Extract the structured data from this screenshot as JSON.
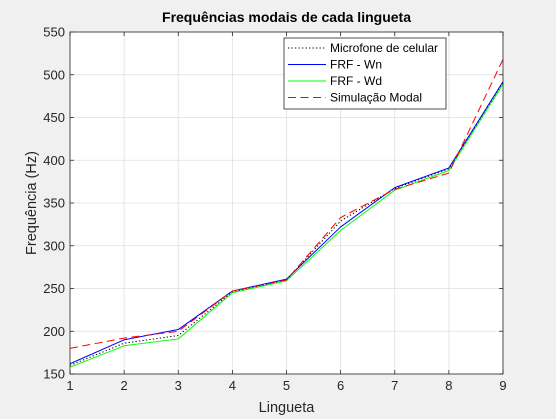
{
  "chart_data": {
    "type": "line",
    "title": "Frequências modais de cada lingueta",
    "xlabel": "Lingueta",
    "ylabel": "Frequência (Hz)",
    "xlim": [
      1,
      9
    ],
    "ylim": [
      150,
      550
    ],
    "x": [
      1,
      2,
      3,
      4,
      5,
      6,
      7,
      8,
      9
    ],
    "x_ticks": [
      1,
      2,
      3,
      4,
      5,
      6,
      7,
      8,
      9
    ],
    "y_ticks": [
      150,
      200,
      250,
      300,
      350,
      400,
      450,
      500,
      550
    ],
    "grid": true,
    "legend_position": "top-right",
    "series": [
      {
        "name": "Microfone de celular",
        "color": "#000000",
        "dash": "dotted",
        "values": [
          160,
          186,
          195,
          246,
          260,
          329,
          367,
          390,
          491
        ]
      },
      {
        "name": "FRF - Wn",
        "color": "#0000ff",
        "dash": "solid",
        "values": [
          162,
          190,
          202,
          247,
          261,
          322,
          368,
          391,
          492
        ]
      },
      {
        "name": "FRF - Wd",
        "color": "#00ff00",
        "dash": "solid",
        "values": [
          158,
          183,
          191,
          245,
          259,
          318,
          365,
          388,
          489
        ]
      },
      {
        "name": "Simulação Modal",
        "color": "#ff0000",
        "dash": "dashed",
        "values": [
          180,
          192,
          200,
          247,
          260,
          333,
          366,
          385,
          518
        ]
      }
    ]
  }
}
